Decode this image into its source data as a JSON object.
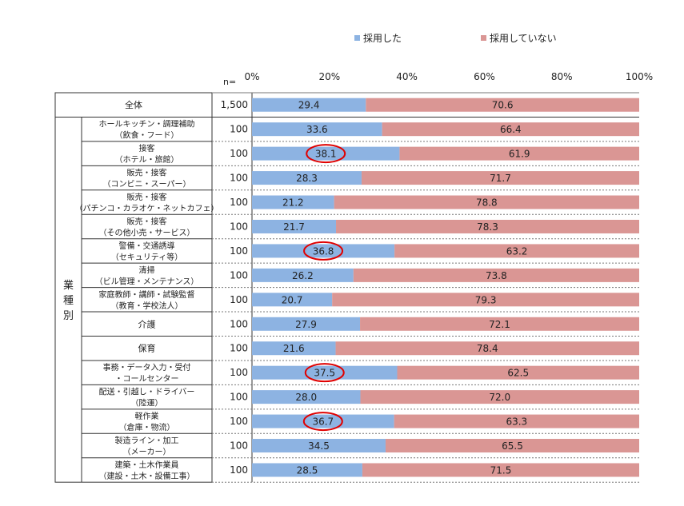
{
  "chart_data": {
    "type": "bar",
    "orientation": "horizontal",
    "stacked": "percent",
    "title": "",
    "n_header": "n=",
    "x_ticks": [
      "0%",
      "20%",
      "40%",
      "60%",
      "80%",
      "100%"
    ],
    "xlim": [
      0,
      100
    ],
    "legend_position": "top",
    "group_label": "業種別",
    "series": [
      {
        "name": "採用した",
        "color": "#8db3e2"
      },
      {
        "name": "採用していない",
        "color": "#da9694"
      }
    ],
    "rows": [
      {
        "label": "全体",
        "n": "1,500",
        "adopted": 29.4,
        "not_adopted": 70.6,
        "circled": false
      },
      {
        "label": "ホールキッチン・調理補助\n（飲食・フード）",
        "n": "100",
        "adopted": 33.6,
        "not_adopted": 66.4,
        "circled": false
      },
      {
        "label": "接客\n（ホテル・旅館）",
        "n": "100",
        "adopted": 38.1,
        "not_adopted": 61.9,
        "circled": true
      },
      {
        "label": "販売・接客\n（コンビニ・スーパー）",
        "n": "100",
        "adopted": 28.3,
        "not_adopted": 71.7,
        "circled": false
      },
      {
        "label": "販売・接客\n（パチンコ・カラオケ・ネットカフェ）",
        "n": "100",
        "adopted": 21.2,
        "not_adopted": 78.8,
        "circled": false
      },
      {
        "label": "販売・接客\n（その他小売・サービス）",
        "n": "100",
        "adopted": 21.7,
        "not_adopted": 78.3,
        "circled": false
      },
      {
        "label": "警備・交通誘導\n（セキュリティ等）",
        "n": "100",
        "adopted": 36.8,
        "not_adopted": 63.2,
        "circled": true
      },
      {
        "label": "清掃\n（ビル管理・メンテナンス）",
        "n": "100",
        "adopted": 26.2,
        "not_adopted": 73.8,
        "circled": false
      },
      {
        "label": "家庭教師・講師・試験監督\n（教育・学校法人）",
        "n": "100",
        "adopted": 20.7,
        "not_adopted": 79.3,
        "circled": false
      },
      {
        "label": "介護",
        "n": "100",
        "adopted": 27.9,
        "not_adopted": 72.1,
        "circled": false
      },
      {
        "label": "保育",
        "n": "100",
        "adopted": 21.6,
        "not_adopted": 78.4,
        "circled": false
      },
      {
        "label": "事務・データ入力・受付\n・コールセンター",
        "n": "100",
        "adopted": 37.5,
        "not_adopted": 62.5,
        "circled": true
      },
      {
        "label": "配送・引越し・ドライバー\n（陸運）",
        "n": "100",
        "adopted": 28.0,
        "not_adopted": 72.0,
        "circled": false
      },
      {
        "label": "軽作業\n（倉庫・物流）",
        "n": "100",
        "adopted": 36.7,
        "not_adopted": 63.3,
        "circled": true
      },
      {
        "label": "製造ライン・加工\n（メーカー）",
        "n": "100",
        "adopted": 34.5,
        "not_adopted": 65.5,
        "circled": false
      },
      {
        "label": "建築・土木作業員\n（建設・土木・設備工事）",
        "n": "100",
        "adopted": 28.5,
        "not_adopted": 71.5,
        "circled": false
      }
    ],
    "highlight_color": "#e00000"
  }
}
